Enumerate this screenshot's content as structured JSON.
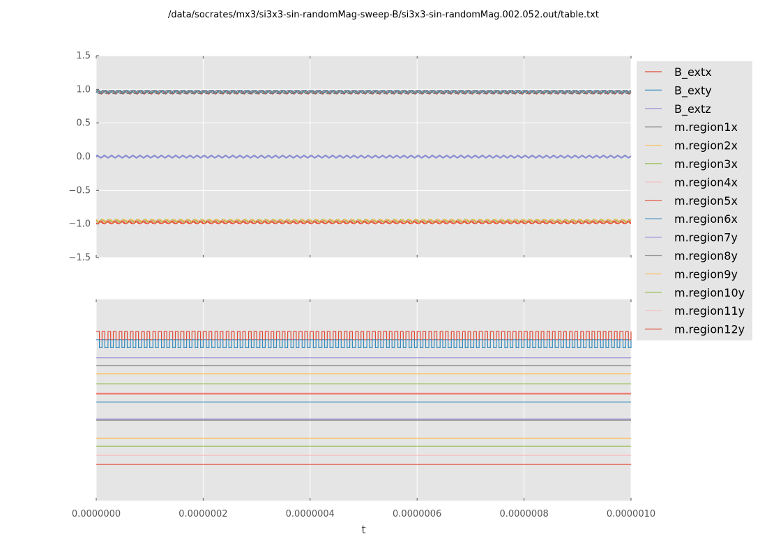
{
  "title": "/data/socrates/mx3/si3x3-sin-randomMag-sweep-B/si3x3-sin-randomMag.002.052.out/table.txt",
  "colors": [
    "#E24A33",
    "#348ABD",
    "#988ED5",
    "#777777",
    "#FBC15E",
    "#8EBA42",
    "#FFB5B8"
  ],
  "chart_data": [
    {
      "type": "line",
      "xlabel": "",
      "ylabel": "",
      "xlim": [
        0,
        1e-06
      ],
      "ylim": [
        -1.5,
        1.5
      ],
      "yticks": [
        "1.5",
        "1.0",
        "0.5",
        "0.0",
        "−0.5",
        "−1.0",
        "−1.5"
      ],
      "ytick_values": [
        1.5,
        1.0,
        0.5,
        0.0,
        -0.5,
        -1.0,
        -1.5
      ],
      "grid": true,
      "oscillation_frequency_hz": 75000000,
      "series": [
        {
          "name": "B_extx",
          "mean": 0.955,
          "amplitude": 0.025
        },
        {
          "name": "B_exty",
          "mean": 0.0,
          "amplitude": 0.02
        },
        {
          "name": "B_extz",
          "mean": 0.0,
          "amplitude": 0.01
        },
        {
          "name": "m.region1x",
          "mean": 0.96,
          "amplitude": 0.025
        },
        {
          "name": "m.region2x",
          "mean": -0.95,
          "amplitude": 0.02
        },
        {
          "name": "m.region3x",
          "mean": -0.96,
          "amplitude": 0.02
        },
        {
          "name": "m.region4x",
          "mean": -0.97,
          "amplitude": 0.02
        },
        {
          "name": "m.region5x",
          "mean": -0.975,
          "amplitude": 0.02
        },
        {
          "name": "m.region6x",
          "mean": 0.965,
          "amplitude": 0.02
        },
        {
          "name": "m.region7y",
          "mean": 0.0,
          "amplitude": 0.015
        },
        {
          "name": "m.region8y",
          "mean": 0.96,
          "amplitude": 0.025
        },
        {
          "name": "m.region9y",
          "mean": -0.955,
          "amplitude": 0.02
        },
        {
          "name": "m.region10y",
          "mean": -0.965,
          "amplitude": 0.02
        },
        {
          "name": "m.region11y",
          "mean": -0.97,
          "amplitude": 0.02
        },
        {
          "name": "m.region12y",
          "mean": -0.98,
          "amplitude": 0.02
        }
      ]
    },
    {
      "type": "line",
      "xlabel": "t",
      "ylabel": "",
      "xlim": [
        0,
        1e-06
      ],
      "ylim": [
        0,
        1
      ],
      "xticks": [
        "0.0000000",
        "0.0000002",
        "0.0000004",
        "0.0000006",
        "0.0000008",
        "0.0000010"
      ],
      "xtick_values": [
        0,
        2e-07,
        4e-07,
        6e-07,
        8e-07,
        1e-06
      ],
      "grid": true,
      "square_wave_frequency_hz": 95000000,
      "series": [
        {
          "name": "B_extx",
          "low": 0.8,
          "high": 0.84,
          "shape": "square"
        },
        {
          "name": "B_exty",
          "low": 0.76,
          "high": 0.8,
          "shape": "square"
        },
        {
          "name": "B_extz",
          "value": 0.71
        },
        {
          "name": "m.region1x",
          "value": 0.67
        },
        {
          "name": "m.region2x",
          "value": 0.63
        },
        {
          "name": "m.region3x",
          "value": 0.58
        },
        {
          "name": "m.region4x",
          "value": 0.535
        },
        {
          "name": "m.region5x",
          "value": 0.53
        },
        {
          "name": "m.region6x",
          "value": 0.49
        },
        {
          "name": "m.region7y",
          "value": 0.405
        },
        {
          "name": "m.region8y",
          "value": 0.4
        },
        {
          "name": "m.region9y",
          "value": 0.31
        },
        {
          "name": "m.region10y",
          "value": 0.27
        },
        {
          "name": "m.region11y",
          "value": 0.225
        },
        {
          "name": "m.region12y",
          "value": 0.18
        }
      ]
    }
  ],
  "legend": {
    "placement": "right",
    "entries": [
      "B_extx",
      "B_exty",
      "B_extz",
      "m.region1x",
      "m.region2x",
      "m.region3x",
      "m.region4x",
      "m.region5x",
      "m.region6x",
      "m.region7y",
      "m.region8y",
      "m.region9y",
      "m.region10y",
      "m.region11y",
      "m.region12y"
    ]
  }
}
